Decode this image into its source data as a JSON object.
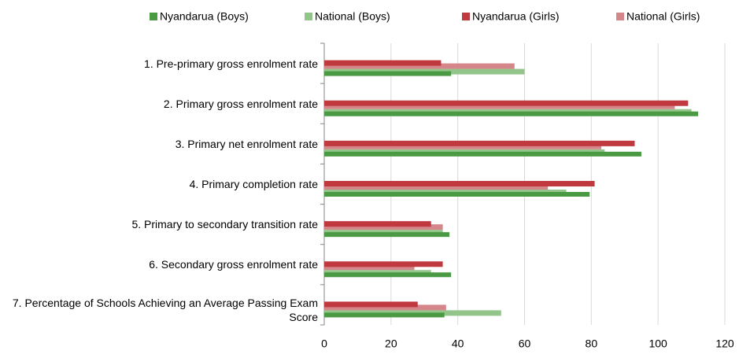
{
  "chart_data": {
    "type": "bar",
    "orientation": "horizontal",
    "categories": [
      "1. Pre-primary gross enrolment rate",
      "2. Primary gross enrolment rate",
      "3. Primary net enrolment rate",
      "4. Primary completion rate",
      "5. Primary to secondary transition rate",
      "6. Secondary gross enrolment rate",
      "7. Percentage of Schools Achieving an Average Passing Exam Score"
    ],
    "series": [
      {
        "name": "Nyandarua (Boys)",
        "color": "#4a9a44",
        "values": [
          38,
          112,
          95,
          79.5,
          37.5,
          38,
          36
        ]
      },
      {
        "name": "National (Boys)",
        "color": "#93c48a",
        "values": [
          60,
          110,
          84,
          72.5,
          35.5,
          32,
          53
        ]
      },
      {
        "name": "Nyandarua (Girls)",
        "color": "#c0393f",
        "values": [
          35,
          109,
          93,
          81,
          32,
          35.5,
          28
        ]
      },
      {
        "name": "National (Girls)",
        "color": "#d4868a",
        "values": [
          57,
          105,
          83,
          67,
          35.5,
          27,
          36.5
        ]
      }
    ],
    "xlim": [
      0,
      120
    ],
    "xticks": [
      0,
      20,
      40,
      60,
      80,
      100,
      120
    ],
    "grid": true,
    "legend": "top"
  }
}
